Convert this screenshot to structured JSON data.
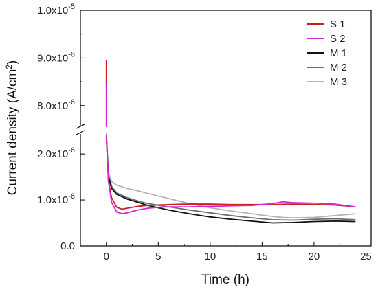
{
  "chart_data": {
    "type": "line",
    "xlabel": "Time (h)",
    "ylabel": {
      "prefix": "Current density (A/cm",
      "sup": "2",
      "suffix": ")"
    },
    "xlim": [
      -2.5,
      25.5
    ],
    "x_ticks": [
      0,
      5,
      10,
      15,
      20,
      25
    ],
    "x_tick_labels": [
      "0",
      "5",
      "10",
      "15",
      "20",
      "25"
    ],
    "y_axis_break": true,
    "y_lower_range": [
      0.0,
      2.45e-06
    ],
    "y_upper_range": [
      7.55e-06,
      1e-05
    ],
    "y_tick_labels": [
      {
        "value": 0.0,
        "label": "0.0"
      },
      {
        "value": 1e-06,
        "label": "1.0x10",
        "exp": "-6"
      },
      {
        "value": 2e-06,
        "label": "2.0x10",
        "exp": "-6"
      },
      {
        "value": 8e-06,
        "label": "8.0x10",
        "exp": "-6"
      },
      {
        "value": 9e-06,
        "label": "9.0x10",
        "exp": "-6"
      },
      {
        "value": 1e-05,
        "label": "1.0x10",
        "exp": "-5"
      }
    ],
    "legend_position": "top-right",
    "series": [
      {
        "name": "S 1",
        "color": "#cc1f1f",
        "x": [
          0,
          0,
          0,
          0.2,
          0.5,
          1.0,
          1.5,
          2.0,
          3.0,
          4.0,
          5.0,
          6.0,
          8.0,
          10.0,
          12.0,
          14.0,
          16.0,
          18.0,
          20.0,
          22.0,
          24.0
        ],
        "y": [
          8.95e-06,
          8.5e-06,
          2.4e-06,
          1.4e-06,
          1.05e-06,
          8.4e-07,
          8e-07,
          8.2e-07,
          8.6e-07,
          8.8e-07,
          8.9e-07,
          9e-07,
          9.1e-07,
          9.1e-07,
          9e-07,
          9e-07,
          9e-07,
          9.1e-07,
          9e-07,
          8.9e-07,
          8.5e-07
        ]
      },
      {
        "name": "S 2",
        "color": "#d426d4",
        "x": [
          0,
          0,
          0,
          0.2,
          0.5,
          1.0,
          1.5,
          2.0,
          3.0,
          4.0,
          5.0,
          6.0,
          8.0,
          10.0,
          12.0,
          14.0,
          16.0,
          17.0,
          18.0,
          20.0,
          22.0,
          24.0
        ],
        "y": [
          8.5e-06,
          7.6e-06,
          2.4e-06,
          1.4e-06,
          9.5e-07,
          7.4e-07,
          7e-07,
          7.2e-07,
          7.8e-07,
          8.2e-07,
          8.4e-07,
          8.5e-07,
          8.5e-07,
          8.6e-07,
          8.7e-07,
          8.8e-07,
          9.2e-07,
          9.6e-07,
          9.4e-07,
          9.3e-07,
          9.1e-07,
          8.5e-07
        ]
      },
      {
        "name": "M 1",
        "color": "#111111",
        "x": [
          0,
          0.2,
          0.5,
          1.0,
          2.0,
          3.0,
          4.0,
          6.0,
          8.0,
          10.0,
          12.0,
          14.0,
          16.0,
          18.0,
          20.0,
          22.0,
          24.0
        ],
        "y": [
          2.35e-06,
          1.5e-06,
          1.25e-06,
          1.12e-06,
          1.02e-06,
          9.5e-07,
          8.8e-07,
          7.8e-07,
          7e-07,
          6.3e-07,
          5.8e-07,
          5.4e-07,
          5e-07,
          5.1e-07,
          5.3e-07,
          5.4e-07,
          5.3e-07
        ]
      },
      {
        "name": "M 2",
        "color": "#6e6e6e",
        "x": [
          0,
          0.2,
          0.5,
          1.0,
          2.0,
          3.0,
          4.0,
          6.0,
          8.0,
          10.0,
          12.0,
          14.0,
          16.0,
          18.0,
          20.0,
          22.0,
          24.0
        ],
        "y": [
          2.4e-06,
          1.55e-06,
          1.3e-06,
          1.15e-06,
          1.05e-06,
          9.8e-07,
          9.2e-07,
          8.5e-07,
          7.8e-07,
          7.2e-07,
          6.6e-07,
          6.1e-07,
          5.7e-07,
          5.6e-07,
          5.8e-07,
          5.9e-07,
          5.7e-07
        ]
      },
      {
        "name": "M 3",
        "color": "#b3b3b3",
        "x": [
          0,
          0.2,
          0.5,
          1.0,
          2.0,
          3.0,
          4.0,
          6.0,
          8.0,
          10.0,
          12.0,
          14.0,
          16.0,
          17.0,
          18.0,
          20.0,
          22.0,
          24.0
        ],
        "y": [
          2.45e-06,
          1.6e-06,
          1.4e-06,
          1.32e-06,
          1.25e-06,
          1.2e-06,
          1.14e-06,
          1.03e-06,
          9.2e-07,
          8.3e-07,
          7.6e-07,
          7e-07,
          6.4e-07,
          6.2e-07,
          6.1e-07,
          6.2e-07,
          6.6e-07,
          7e-07
        ]
      }
    ]
  }
}
